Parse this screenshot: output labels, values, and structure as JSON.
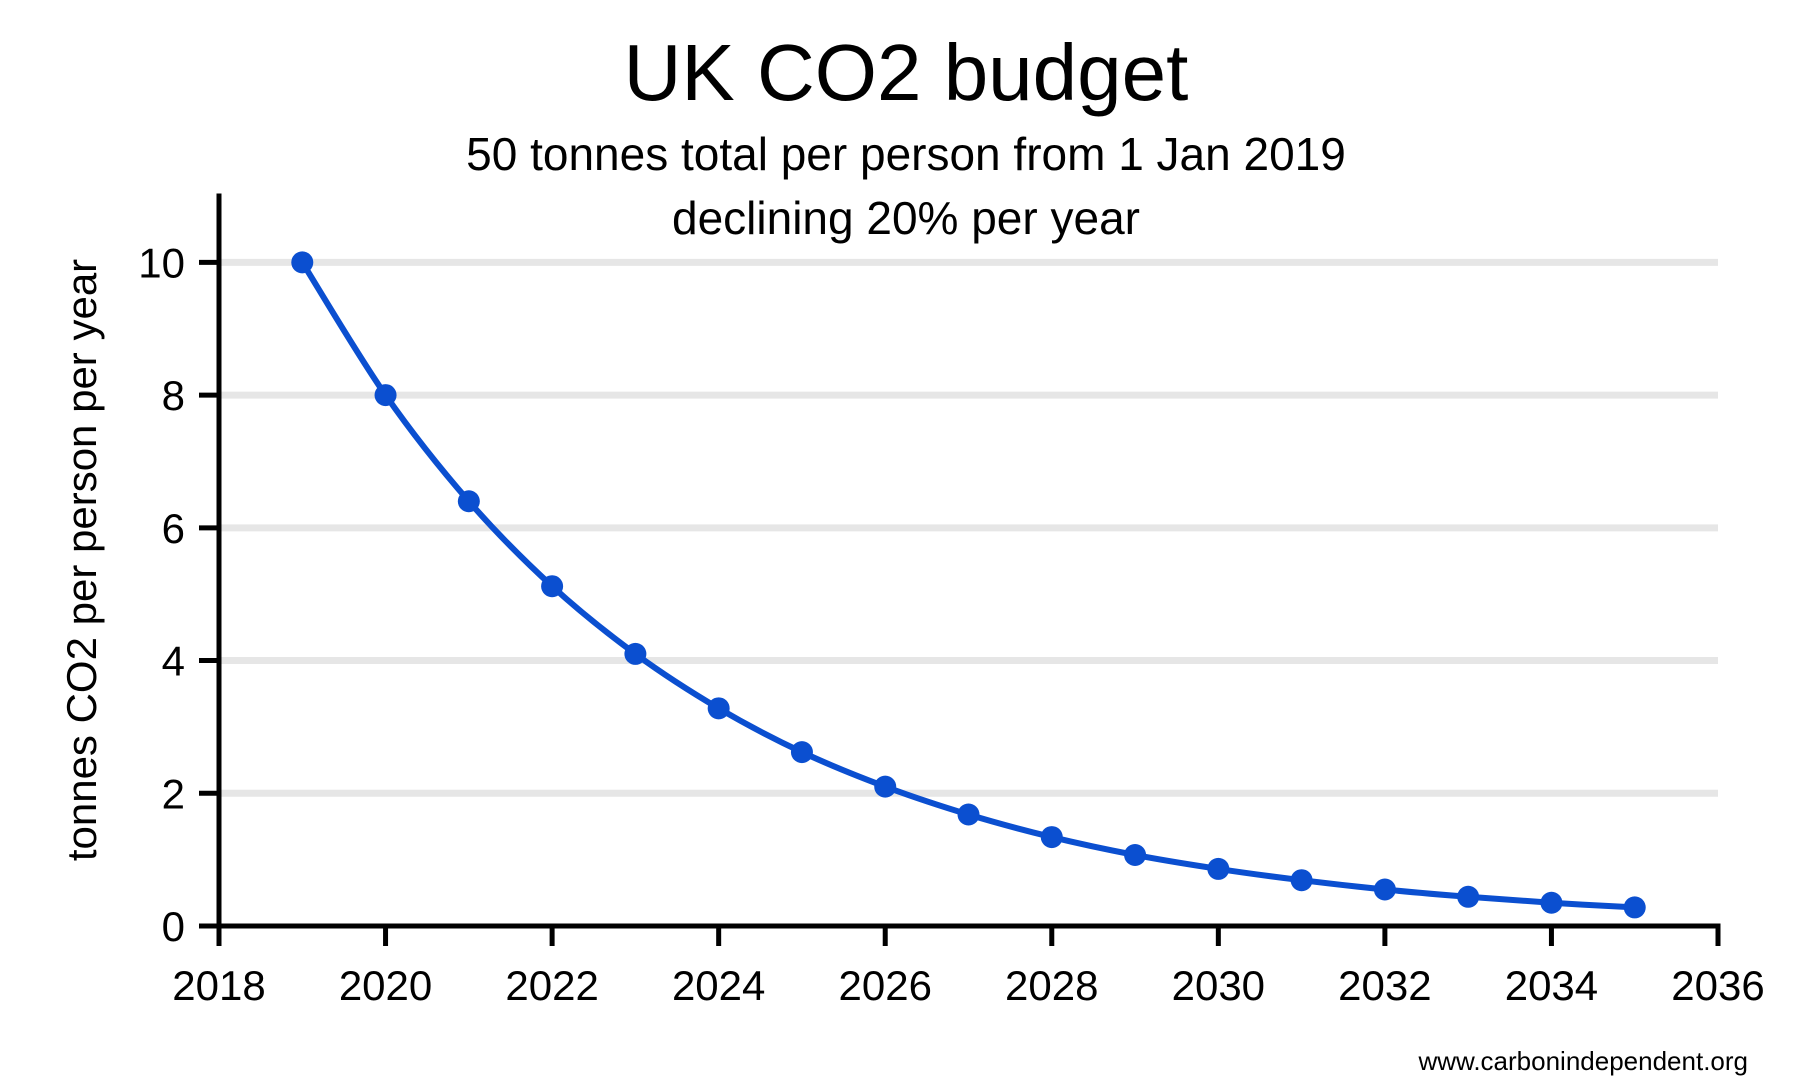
{
  "chart_data": {
    "type": "line",
    "title": "UK CO2 budget",
    "subtitle_lines": [
      "50 tonnes total per person from 1 Jan 2019",
      "declining 20% per year"
    ],
    "xlabel": "",
    "ylabel": "tonnes CO2 per person per year",
    "xlim": [
      2018,
      2036
    ],
    "ylim": [
      0,
      11
    ],
    "x_ticks": [
      2018,
      2020,
      2022,
      2024,
      2026,
      2028,
      2030,
      2032,
      2034,
      2036
    ],
    "y_ticks": [
      0,
      2,
      4,
      6,
      8,
      10
    ],
    "grid": {
      "horizontal": true,
      "vertical": false
    },
    "series": [
      {
        "x": [
          2019,
          2020,
          2021,
          2022,
          2023,
          2024,
          2025,
          2026,
          2027,
          2028,
          2029,
          2030,
          2031,
          2032,
          2033,
          2034,
          2035
        ],
        "y": [
          10,
          8,
          6.4,
          5.12,
          4.1,
          3.28,
          2.62,
          2.1,
          1.68,
          1.34,
          1.07,
          0.86,
          0.69,
          0.55,
          0.44,
          0.35,
          0.28
        ]
      }
    ],
    "credit": "www.carbonindependent.org",
    "colors": {
      "line": "#0b4fd0",
      "gridline": "#e6e6e6",
      "axis": "#000000"
    }
  }
}
